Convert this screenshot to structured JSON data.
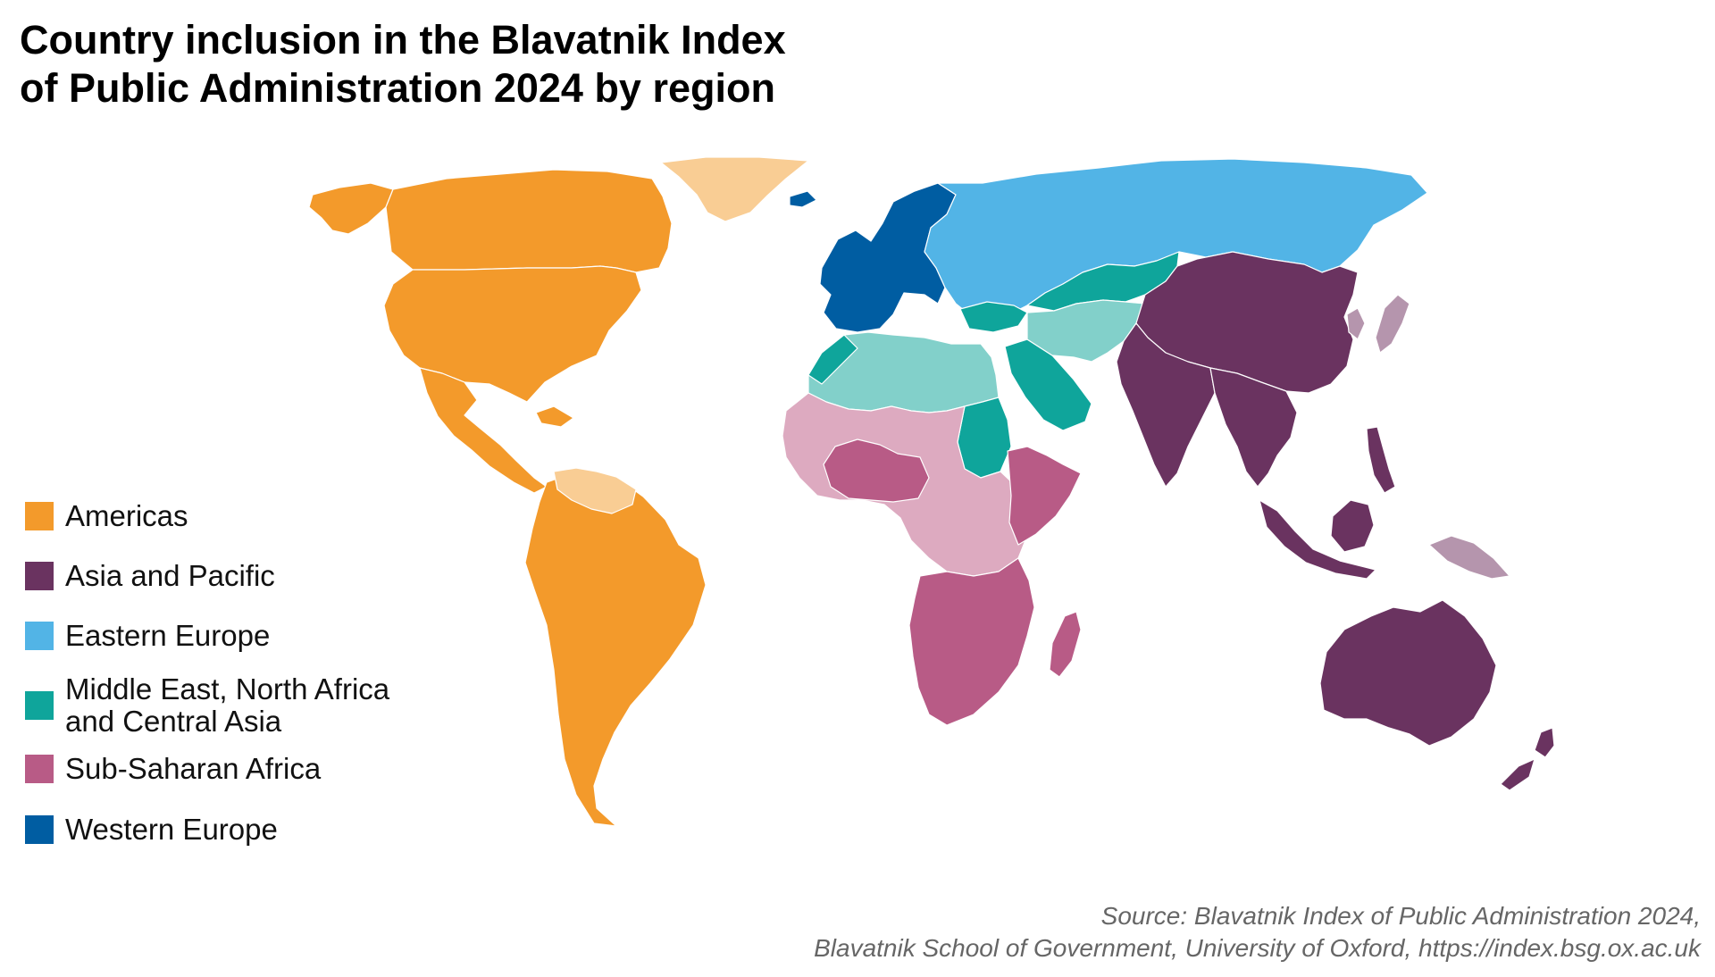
{
  "title": {
    "line1": "Country inclusion in the Blavatnik Index",
    "line2": "of Public Administration 2024 by region"
  },
  "colors": {
    "americas": "#f39a2b",
    "americas_light": "#f9cd94",
    "asia_pacific": "#6a3360",
    "asia_pacific_light": "#b595ad",
    "eastern_europe": "#52b4e6",
    "mena_ca": "#0fa59b",
    "mena_ca_light": "#82d0ca",
    "ssa": "#b85b86",
    "ssa_light": "#ddaac0",
    "western_europe": "#005da2"
  },
  "legend": [
    {
      "key": "americas",
      "lines": [
        "Americas"
      ]
    },
    {
      "key": "asia_pacific",
      "lines": [
        "Asia and Pacific"
      ]
    },
    {
      "key": "eastern_europe",
      "lines": [
        "Eastern Europe"
      ]
    },
    {
      "key": "mena_ca",
      "lines": [
        "Middle East, North Africa",
        "and Central Asia"
      ]
    },
    {
      "key": "ssa",
      "lines": [
        "Sub-Saharan Africa"
      ]
    },
    {
      "key": "western_europe",
      "lines": [
        "Western Europe"
      ]
    }
  ],
  "source": {
    "line1": "Source: Blavatnik Index of Public Administration 2024,",
    "line2": "Blavatnik School of Government, University of Oxford, https://index.bsg.ox.ac.uk"
  }
}
